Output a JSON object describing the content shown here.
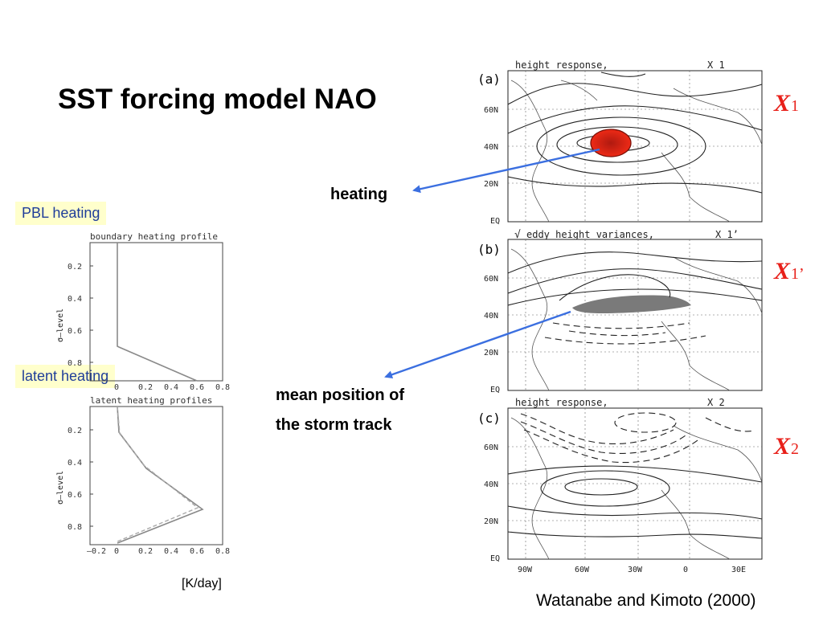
{
  "slide": {
    "title": "SST forcing model NAO",
    "credit": "Watanabe and Kimoto (2000)",
    "heating_label": "heating",
    "storm_track_label_line1": "mean position of",
    "storm_track_label_line2": "the storm track",
    "pbl_tag": "PBL heating",
    "latent_tag": "latent heating",
    "units": "[K/day]"
  },
  "labels": {
    "x1": {
      "base": "X",
      "sub": "1"
    },
    "x1p": {
      "base": "X",
      "sub": "1’"
    },
    "x2": {
      "base": "X",
      "sub": "2"
    }
  },
  "panels": {
    "a": {
      "letter": "(a)",
      "header": "height response,",
      "tag": "X 1"
    },
    "b": {
      "letter": "(b)",
      "check": "√",
      "header": "eddy height variances,",
      "tag": "X 1’"
    },
    "c": {
      "letter": "(c)",
      "header": "height response,",
      "tag": "X 2"
    },
    "lat_ticks": [
      "60N",
      "40N",
      "20N",
      "EQ"
    ],
    "lon_ticks": [
      "90W",
      "60W",
      "30W",
      "0",
      "30E"
    ]
  },
  "profiles": {
    "pbl": {
      "title": "boundary heating profile",
      "ylabel": "σ–level",
      "yticks": [
        "0.2",
        "0.4",
        "0.6",
        "0.8"
      ],
      "xticks": [
        "0",
        "0.2",
        "0.4",
        "0.6",
        "0.8"
      ]
    },
    "latent": {
      "title": "latent heating profiles",
      "ylabel": "σ–level",
      "yticks": [
        "0.2",
        "0.4",
        "0.6",
        "0.8"
      ],
      "xticks": [
        "–0.2",
        "0",
        "0.2",
        "0.4",
        "0.6",
        "0.8"
      ]
    }
  },
  "colors": {
    "accent": "#e8201a",
    "arrow": "#3b6fe0",
    "tag_bg": "#ffffcc",
    "tag_text": "#1f3d99"
  }
}
